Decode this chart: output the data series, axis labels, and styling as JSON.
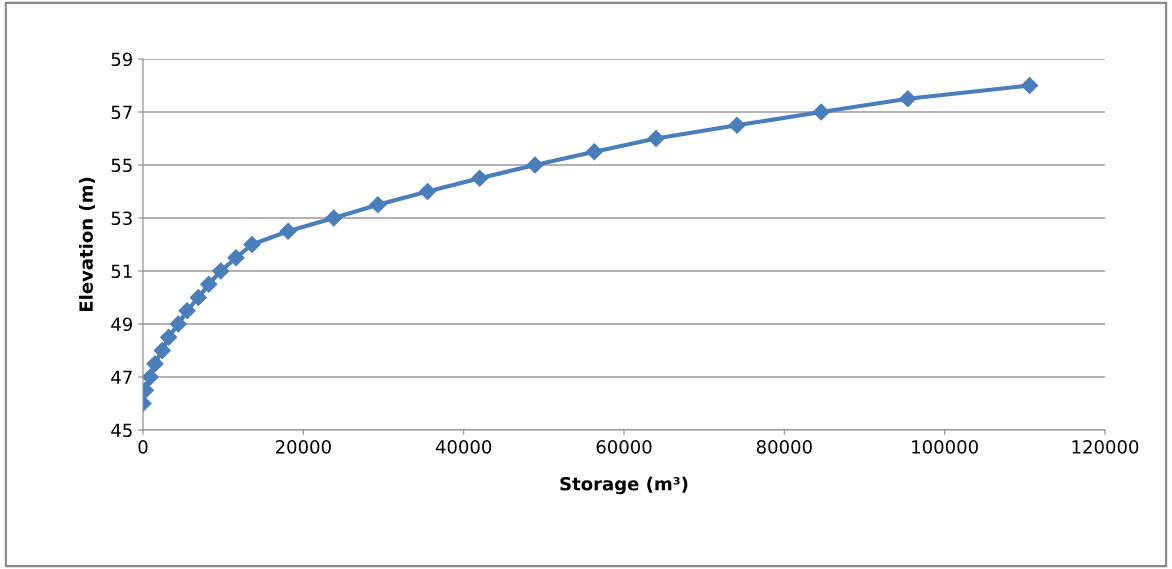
{
  "chart_data": {
    "type": "line",
    "xlabel": "Storage (m³)",
    "ylabel": "Elevation (m)",
    "xlim": [
      0,
      120000
    ],
    "xticks": [
      0,
      20000,
      40000,
      60000,
      80000,
      100000,
      120000
    ],
    "ylim": [
      45,
      59
    ],
    "yticks": [
      45,
      47,
      49,
      51,
      53,
      55,
      57,
      59
    ],
    "grid": "y",
    "marker": "diamond",
    "line_style": "solid",
    "legend": false,
    "series": [
      {
        "color": "#4a7ebb",
        "x": [
          0,
          300,
          900,
          1500,
          2400,
          3200,
          4400,
          5500,
          6900,
          8200,
          9700,
          11600,
          13600,
          18100,
          23800,
          29300,
          35500,
          42000,
          48900,
          56300,
          64000,
          74100,
          84600,
          95400,
          110600
        ],
        "values": [
          46,
          46.5,
          47,
          47.5,
          48,
          48.5,
          49,
          49.5,
          50,
          50.5,
          51,
          51.5,
          52,
          52.5,
          53,
          53.5,
          54,
          54.5,
          55,
          55.5,
          56,
          56.5,
          57,
          57.5,
          58
        ]
      }
    ]
  }
}
